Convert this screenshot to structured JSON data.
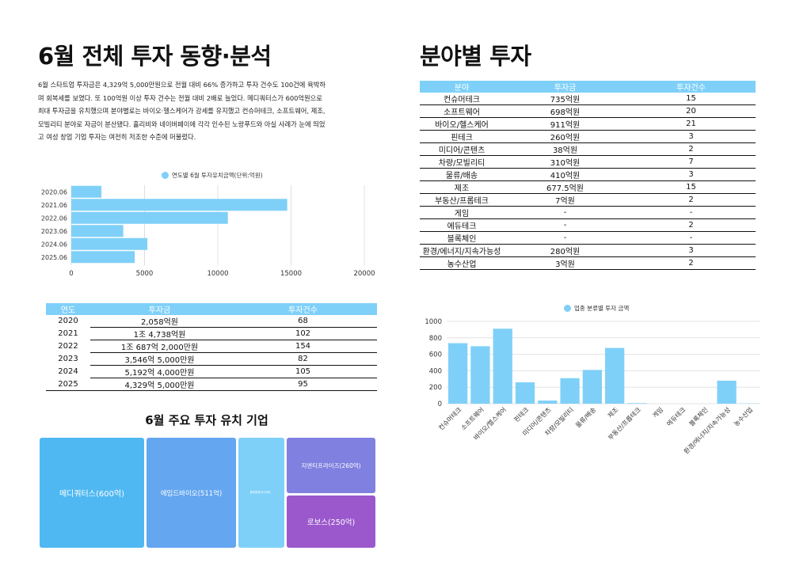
{
  "left": {
    "title": "6월 전체 투자 동향·분석",
    "paragraph": "6월 스타트업 투자금은 4,329억 5,000만원으로 전월 대비 66% 증가하고 투자 건수도 100건에 육박하\n며 회복세를 보였다. 또 100억원 이상 투자 건수는 전월 대비 2배로 늘었다. 메디쿼터스가 600억원으로\n최대 투자금을 유치했으며 분야별로는 바이오·헬스케어가 강세를 유지했고 컨슈머테크, 소프트웨어, 제조,\n모빌리티 분야로 자금이 분산됐다. 홀리비와 네이버페이에 각각 인수된 노랑푸드와 아실 사례가 눈에 띄었\n고 여성 창업 기업 투자는 여전히 저조한 수준에 머물렀다.",
    "bar_legend": "연도별 6월 투자유치금액(단위:억원)",
    "year_table": {
      "headers": [
        "연도",
        "투자금",
        "투자건수"
      ],
      "rows": [
        [
          "2020",
          "2,058억원",
          "68"
        ],
        [
          "2021",
          "1조 4,738억원",
          "102"
        ],
        [
          "2022",
          "1조 687억 2,000만원",
          "154"
        ],
        [
          "2023",
          "3,546억 5,000만원",
          "82"
        ],
        [
          "2024",
          "5,192억 4,000만원",
          "105"
        ],
        [
          "2025",
          "4,329억 5,000만원",
          "95"
        ]
      ]
    },
    "treemap_title": "6월 주요 투자 유치 기업",
    "treemap": [
      {
        "label": "메디쿼터스(600억)",
        "value": 600,
        "color": "#4fb8f2"
      },
      {
        "label": "에임드바이오(511억)",
        "value": 511,
        "color": "#64a6f0"
      },
      {
        "label": "플랫폼엔지니어링...",
        "value": 300,
        "color": "#7fd0f8"
      },
      {
        "label": "지엔티프라이즈(260억)",
        "value": 260,
        "color": "#8080e0"
      },
      {
        "label": "로보스(250억)",
        "value": 250,
        "color": "#9b58cc"
      }
    ]
  },
  "right": {
    "title": "분야별 투자",
    "sector_table": {
      "headers": [
        "분야",
        "투자금",
        "투자건수"
      ],
      "rows": [
        [
          "컨슈머테크",
          "735억원",
          "15"
        ],
        [
          "소프트웨어",
          "698억원",
          "20"
        ],
        [
          "바이오/헬스케어",
          "911억원",
          "21"
        ],
        [
          "핀테크",
          "260억원",
          "3"
        ],
        [
          "미디어/콘텐츠",
          "38억원",
          "2"
        ],
        [
          "차량/모빌리티",
          "310억원",
          "7"
        ],
        [
          "물류/배송",
          "410억원",
          "3"
        ],
        [
          "제조",
          "677.5억원",
          "15"
        ],
        [
          "부동산/프롭테크",
          "7억원",
          "2"
        ],
        [
          "게임",
          "-",
          "-"
        ],
        [
          "에듀테크",
          "-",
          "2"
        ],
        [
          "블록체인",
          "-",
          "-"
        ],
        [
          "환경/에너지/지속가능성",
          "280억원",
          "3"
        ],
        [
          "농수산업",
          "3억원",
          "2"
        ]
      ]
    },
    "col_legend": "업종 분류별 투자 금액"
  },
  "chart_data": [
    {
      "type": "bar",
      "orientation": "horizontal",
      "title": "",
      "categories": [
        "2020.06",
        "2021.06",
        "2022.06",
        "2023.06",
        "2024.06",
        "2025.06"
      ],
      "series": [
        {
          "name": "연도별 6월 투자유치금액(단위:억원)",
          "values": [
            2058,
            14738,
            10687,
            3547,
            5192,
            4330
          ]
        }
      ],
      "xlim": [
        0,
        20000
      ],
      "x_ticks": [
        "0",
        "5000",
        "10000",
        "15000",
        "20000"
      ],
      "color": "#7fd0f8",
      "grid": true,
      "legend": "top"
    },
    {
      "type": "bar",
      "title": "",
      "categories": [
        "컨슈머테크",
        "소프트웨어",
        "바이오/헬스케어",
        "핀테크",
        "미디어/콘텐츠",
        "차량/모빌리티",
        "물류/배송",
        "제조",
        "부동산/프롭테크",
        "게임",
        "에듀테크",
        "블록체인",
        "환경/에너지/지속가능성",
        "농수산업"
      ],
      "series": [
        {
          "name": "업종 분류별 투자 금액",
          "values": [
            735,
            698,
            911,
            260,
            38,
            310,
            410,
            677.5,
            7,
            0,
            0,
            0,
            280,
            3
          ]
        }
      ],
      "ylim": [
        0,
        1000
      ],
      "y_ticks": [
        "0",
        "200",
        "400",
        "600",
        "800",
        "1000"
      ],
      "color": "#7fd0f8",
      "grid": true,
      "legend": "top"
    }
  ]
}
